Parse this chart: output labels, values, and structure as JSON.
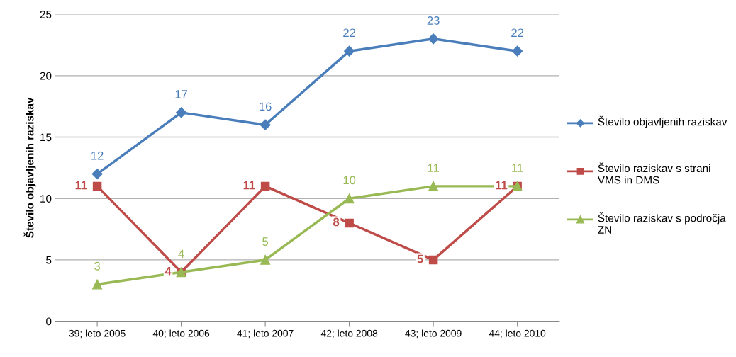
{
  "chart_data": {
    "type": "line",
    "ylabel": "Število objavljenih raziskav",
    "categories": [
      "39; leto 2005",
      "40; leto 2006",
      "41; leto 2007",
      "42; leto 2008",
      "43; leto 2009",
      "44; leto 2010"
    ],
    "series": [
      {
        "name": "Število objavljenih raziskav",
        "color": "#4a7ebb",
        "marker": "diamond",
        "values": [
          12,
          17,
          16,
          22,
          23,
          22
        ]
      },
      {
        "name": "Število raziskav s strani VMS in DMS",
        "color": "#be4b48",
        "marker": "square",
        "values": [
          11,
          4,
          11,
          8,
          5,
          11
        ]
      },
      {
        "name": "Število raziskav s področja ZN",
        "color": "#98b954",
        "marker": "triangle",
        "values": [
          3,
          4,
          5,
          10,
          11,
          11
        ]
      }
    ],
    "ylim": [
      0,
      25
    ],
    "yticks": [
      0,
      5,
      10,
      15,
      20,
      25
    ],
    "grid": "y",
    "legend": "right",
    "data_labels": true
  }
}
